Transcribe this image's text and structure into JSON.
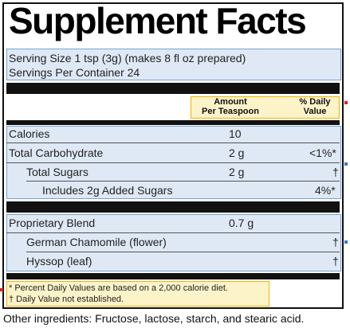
{
  "title": "Supplement Facts",
  "serving": {
    "size": "Serving Size 1 tsp (3g) (makes 8 fl oz prepared)",
    "per_container": "Servings Per Container 24"
  },
  "header": {
    "amount_line1": "Amount",
    "amount_line2": "Per Teaspoon",
    "dv_line1": "% Daily",
    "dv_line2": "Value"
  },
  "nutrients": [
    {
      "name": "Calories",
      "amount": "10",
      "dv": ""
    },
    {
      "name": "Total Carbohydrate",
      "amount": "2 g",
      "dv": "<1%*"
    },
    {
      "name": "Total Sugars",
      "amount": "2 g",
      "dv": "†"
    },
    {
      "name": "Includes 2g Added Sugars",
      "amount": "",
      "dv": "4%*"
    }
  ],
  "blend": {
    "name": "Proprietary Blend",
    "amount": "0.7 g",
    "items": [
      {
        "name": "German Chamomile (flower)",
        "dv": "†"
      },
      {
        "name": "Hyssop (leaf)",
        "dv": "†"
      }
    ]
  },
  "footnotes": {
    "line1": "* Percent Daily Values are based on a 2,000 calorie diet.",
    "line2": "† Daily Value not established."
  },
  "other_ingredients": "Other ingredients: Fructose, lactose, starch, and stearic acid.",
  "colors": {
    "highlight_blue": "#dfe9f5",
    "highlight_yellow": "#fdf3c9",
    "marker_red": "#e0201b",
    "marker_blue": "#3a78c2"
  }
}
